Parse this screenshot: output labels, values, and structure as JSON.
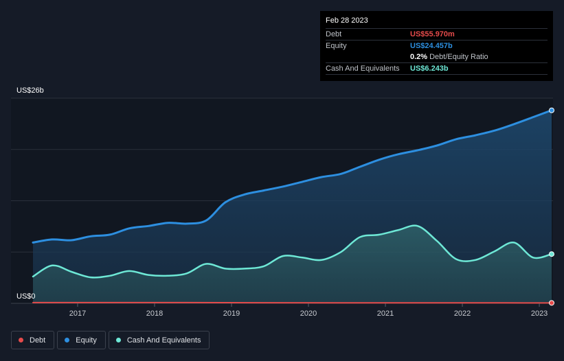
{
  "tooltip": {
    "date": "Feb 28 2023",
    "debt_label": "Debt",
    "debt_value": "US$55.970m",
    "equity_label": "Equity",
    "equity_value": "US$24.457b",
    "ratio_value": "0.2%",
    "ratio_label": "Debt/Equity Ratio",
    "cash_label": "Cash And Equivalents",
    "cash_value": "US$6.243b"
  },
  "legend": {
    "debt": "Debt",
    "equity": "Equity",
    "cash": "Cash And Equivalents"
  },
  "colors": {
    "debt": "#e64b4b",
    "equity": "#2d8fe0",
    "cash": "#6ee8d6",
    "background": "#151b27"
  },
  "chart_data": {
    "type": "area",
    "ylabel_top": "US$26b",
    "ylabel_bottom": "US$0",
    "ylim": [
      0,
      26
    ],
    "xlim": [
      2016.4,
      2023.2
    ],
    "xticks": [
      2017,
      2018,
      2019,
      2020,
      2021,
      2022,
      2023
    ],
    "xtick_labels": [
      "2017",
      "2018",
      "2019",
      "2020",
      "2021",
      "2022",
      "2023"
    ],
    "grid": true,
    "series": [
      {
        "name": "Equity",
        "x": [
          2016.42,
          2016.67,
          2016.92,
          2017.17,
          2017.42,
          2017.67,
          2017.92,
          2018.17,
          2018.42,
          2018.67,
          2018.92,
          2019.17,
          2019.42,
          2019.67,
          2019.92,
          2020.17,
          2020.42,
          2020.67,
          2020.92,
          2021.17,
          2021.42,
          2021.67,
          2021.92,
          2022.17,
          2022.42,
          2022.67,
          2022.92,
          2023.16
        ],
        "values": [
          7.7,
          8.1,
          8.0,
          8.5,
          8.7,
          9.5,
          9.8,
          10.2,
          10.1,
          10.5,
          12.8,
          13.8,
          14.3,
          14.8,
          15.4,
          16.0,
          16.4,
          17.3,
          18.2,
          18.9,
          19.4,
          20.0,
          20.8,
          21.3,
          21.9,
          22.7,
          23.6,
          24.457
        ]
      },
      {
        "name": "Cash And Equivalents",
        "x": [
          2016.42,
          2016.67,
          2016.92,
          2017.17,
          2017.42,
          2017.67,
          2017.92,
          2018.17,
          2018.42,
          2018.67,
          2018.92,
          2019.17,
          2019.42,
          2019.67,
          2019.92,
          2020.17,
          2020.42,
          2020.67,
          2020.92,
          2021.17,
          2021.42,
          2021.67,
          2021.92,
          2022.17,
          2022.42,
          2022.67,
          2022.92,
          2023.16
        ],
        "values": [
          3.4,
          4.8,
          4.0,
          3.3,
          3.5,
          4.1,
          3.6,
          3.5,
          3.8,
          5.0,
          4.4,
          4.4,
          4.7,
          6.0,
          5.8,
          5.5,
          6.5,
          8.4,
          8.7,
          9.3,
          9.8,
          7.9,
          5.6,
          5.5,
          6.6,
          7.7,
          5.8,
          6.243
        ]
      },
      {
        "name": "Debt",
        "x": [
          2016.42,
          2017.42,
          2018.42,
          2019.42,
          2020.42,
          2021.42,
          2022.42,
          2023.16
        ],
        "values": [
          0.1,
          0.1,
          0.1,
          0.08,
          0.06,
          0.06,
          0.06,
          0.056
        ]
      }
    ]
  }
}
